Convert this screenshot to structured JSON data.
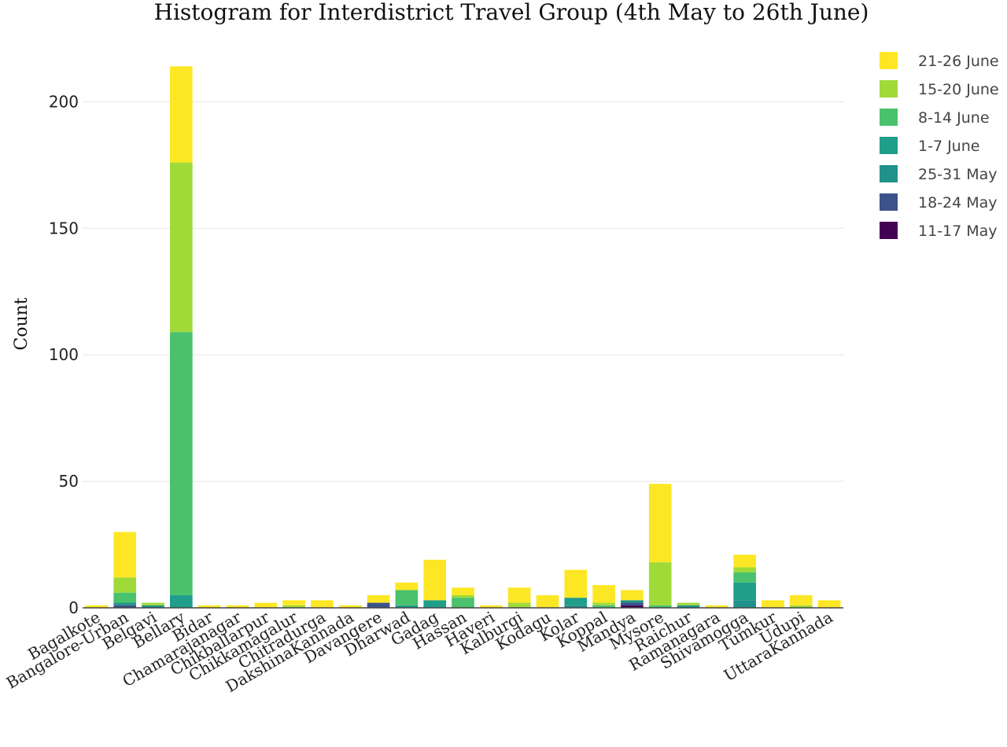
{
  "chart_data": {
    "type": "bar",
    "stacked": true,
    "title": "Histogram for Interdistrict Travel Group (4th May to 26th June)",
    "xlabel": "",
    "ylabel": "Count",
    "ylim": [
      0,
      220
    ],
    "yticks": [
      0,
      50,
      100,
      150,
      200
    ],
    "grid": true,
    "legend_position": "top-right",
    "categories": [
      "Bagalkote",
      "Bangalore-Urban",
      "Belgavi",
      "Bellary",
      "Bidar",
      "Chamarajanagar",
      "Chikballarpur",
      "Chikkamagalur",
      "Chitradurga",
      "DakshinaKannada",
      "Davangere",
      "Dharwad",
      "Gadag",
      "Hassan",
      "Haveri",
      "Kalburgi",
      "Kodagu",
      "Kolar",
      "Koppal",
      "Mandya",
      "Mysore",
      "Raichur",
      "Ramanagara",
      "Shivamogga",
      "Tumkur",
      "Udupi",
      "UttaraKannada"
    ],
    "series": [
      {
        "name": "11-17 May",
        "color": "#440154",
        "values": [
          0,
          0,
          0,
          0,
          0,
          0,
          0,
          0,
          0,
          0,
          0,
          0,
          0,
          0,
          0,
          0,
          0,
          0,
          0,
          1,
          0,
          0,
          0,
          0,
          0,
          0,
          0
        ]
      },
      {
        "name": "18-24 May",
        "color": "#3b528b",
        "values": [
          0,
          1,
          0,
          0,
          0,
          0,
          0,
          0,
          0,
          0,
          2,
          0,
          0,
          0,
          0,
          0,
          0,
          0,
          0,
          1,
          0,
          0,
          0,
          0,
          0,
          0,
          0
        ]
      },
      {
        "name": "25-31 May",
        "color": "#21918c",
        "values": [
          0,
          1,
          1,
          0,
          0,
          0,
          0,
          0,
          0,
          0,
          0,
          0,
          0,
          0,
          0,
          0,
          0,
          1,
          0,
          1,
          0,
          1,
          0,
          3,
          0,
          0,
          0
        ]
      },
      {
        "name": "1-7 June",
        "color": "#1f9e89",
        "values": [
          0,
          0,
          0,
          5,
          0,
          0,
          0,
          0,
          0,
          0,
          0,
          1,
          3,
          0,
          0,
          0,
          0,
          3,
          0,
          0,
          0,
          0,
          0,
          7,
          0,
          0,
          0
        ]
      },
      {
        "name": "8-14 June",
        "color": "#4ac16d",
        "values": [
          0,
          4,
          0,
          104,
          0,
          0,
          0,
          0,
          0,
          0,
          0,
          6,
          0,
          4,
          0,
          0,
          0,
          0,
          1,
          0,
          1,
          0,
          0,
          4,
          0,
          0,
          0
        ]
      },
      {
        "name": "15-20 June",
        "color": "#a0da39",
        "values": [
          0,
          6,
          1,
          67,
          0,
          0,
          0,
          1,
          0,
          0,
          0,
          0,
          0,
          1,
          0,
          2,
          0,
          0,
          1,
          0,
          17,
          1,
          0,
          2,
          0,
          1,
          0
        ]
      },
      {
        "name": "21-26 June",
        "color": "#fde725",
        "values": [
          1,
          18,
          0,
          38,
          1,
          1,
          2,
          2,
          3,
          1,
          3,
          3,
          16,
          3,
          1,
          6,
          5,
          11,
          7,
          4,
          31,
          0,
          1,
          5,
          3,
          4,
          3
        ]
      }
    ]
  }
}
